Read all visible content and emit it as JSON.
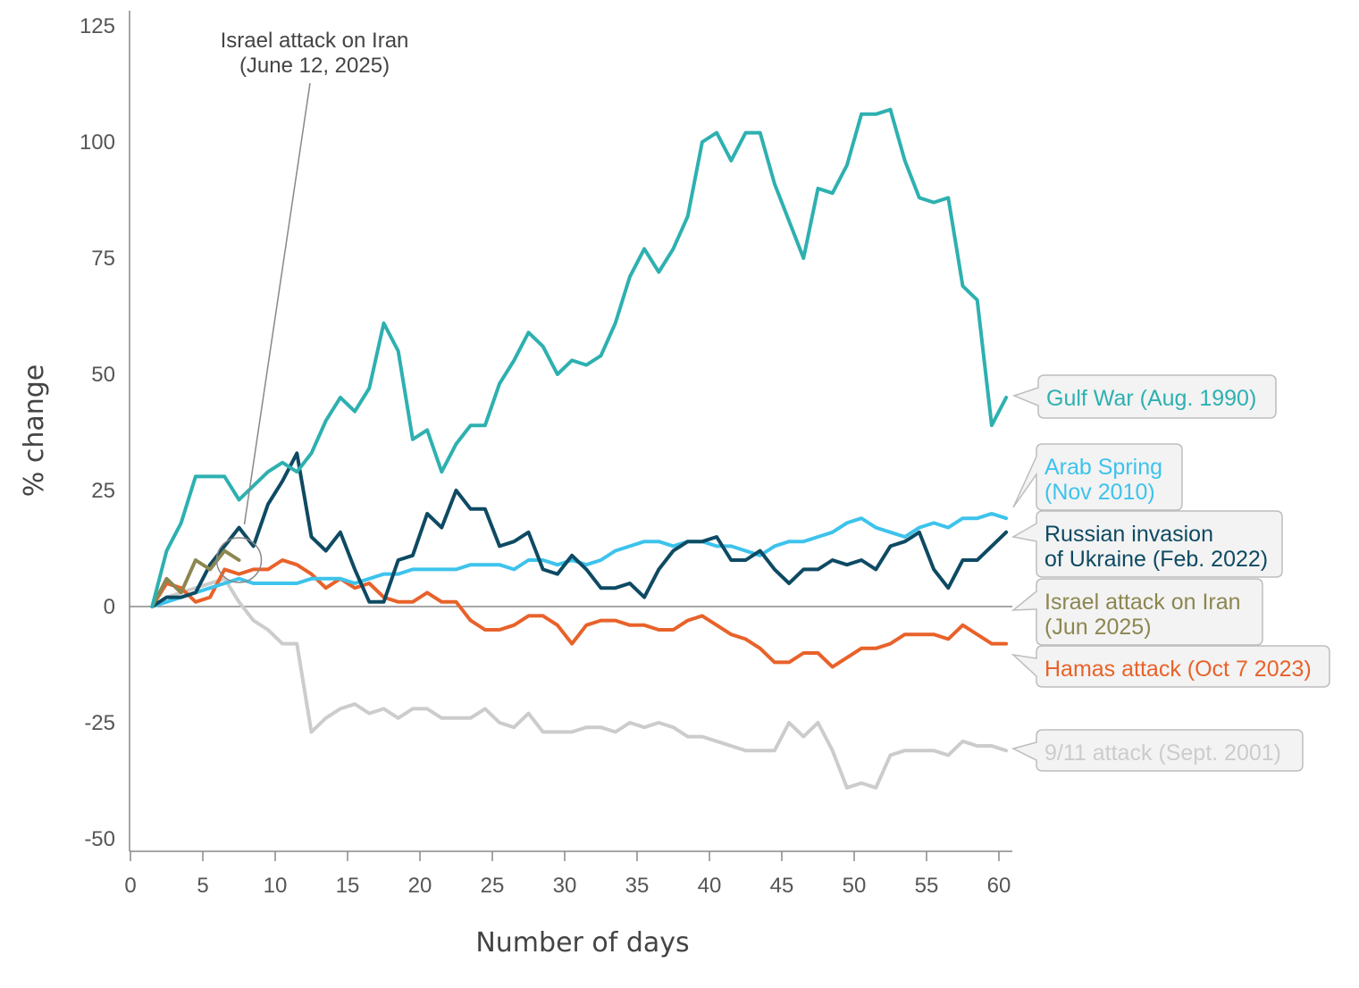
{
  "chart_data": {
    "type": "line",
    "title": "",
    "xlabel": "Number of days",
    "ylabel": "% change",
    "xlim": [
      0,
      61
    ],
    "ylim": [
      -52,
      128
    ],
    "xticks": [
      0,
      5,
      10,
      15,
      20,
      25,
      30,
      35,
      40,
      45,
      50,
      55,
      60
    ],
    "yticks": [
      125,
      100,
      75,
      50,
      25,
      0,
      -25,
      -50
    ],
    "zero_line": true,
    "grid": false,
    "legend": "callouts-right",
    "annotation": {
      "line1": "Israel attack on Iran",
      "line2": "(June 12, 2025)",
      "target_x": 7.5,
      "target_y": 10
    },
    "series": [
      {
        "name": "9/11 attack (Sept. 2001)",
        "label_lines": [
          "9/11 attack (Sept. 2001)"
        ],
        "color": "#cccccc",
        "x": [
          1.5,
          2.5,
          3.5,
          4.5,
          5.5,
          6.5,
          7.5,
          8.5,
          9.5,
          10.5,
          11.5,
          12.5,
          13.5,
          14.5,
          15.5,
          16.5,
          17.5,
          18.5,
          19.5,
          20.5,
          21.5,
          22.5,
          23.5,
          24.5,
          25.5,
          26.5,
          27.5,
          28.5,
          29.5,
          30.5,
          31.5,
          32.5,
          33.5,
          34.5,
          35.5,
          36.5,
          37.5,
          38.5,
          39.5,
          40.5,
          41.5,
          42.5,
          43.5,
          44.5,
          45.5,
          46.5,
          47.5,
          48.5,
          49.5,
          50.5,
          51.5,
          52.5,
          53.5,
          54.5,
          55.5,
          56.5,
          57.5,
          58.5,
          59.5,
          60.5
        ],
        "y": [
          0,
          2,
          3,
          4,
          5,
          6,
          1,
          -3,
          -5,
          -8,
          -8,
          -27,
          -24,
          -22,
          -21,
          -23,
          -22,
          -24,
          -22,
          -22,
          -24,
          -24,
          -24,
          -22,
          -25,
          -26,
          -23,
          -27,
          -27,
          -27,
          -26,
          -26,
          -27,
          -25,
          -26,
          -25,
          -26,
          -28,
          -28,
          -29,
          -30,
          -31,
          -31,
          -31,
          -25,
          -28,
          -25,
          -31,
          -39,
          -38,
          -39,
          -32,
          -31,
          -31,
          -31,
          -32,
          -29,
          -30,
          -30,
          -31
        ]
      },
      {
        "name": "Hamas attack (Oct 7 2023)",
        "label_lines": [
          "Hamas attack (Oct 7 2023)"
        ],
        "color": "#e8622a",
        "x": [
          1.5,
          2.5,
          3.5,
          4.5,
          5.5,
          6.5,
          7.5,
          8.5,
          9.5,
          10.5,
          11.5,
          12.5,
          13.5,
          14.5,
          15.5,
          16.5,
          17.5,
          18.5,
          19.5,
          20.5,
          21.5,
          22.5,
          23.5,
          24.5,
          25.5,
          26.5,
          27.5,
          28.5,
          29.5,
          30.5,
          31.5,
          32.5,
          33.5,
          34.5,
          35.5,
          36.5,
          37.5,
          38.5,
          39.5,
          40.5,
          41.5,
          42.5,
          43.5,
          44.5,
          45.5,
          46.5,
          47.5,
          48.5,
          49.5,
          50.5,
          51.5,
          52.5,
          53.5,
          54.5,
          55.5,
          56.5,
          57.5,
          58.5,
          59.5,
          60.5
        ],
        "y": [
          0,
          5,
          4,
          1,
          2,
          8,
          7,
          8,
          8,
          10,
          9,
          7,
          4,
          6,
          4,
          5,
          2,
          1,
          1,
          3,
          1,
          1,
          -3,
          -5,
          -5,
          -4,
          -2,
          -2,
          -4,
          -8,
          -4,
          -3,
          -3,
          -4,
          -4,
          -5,
          -5,
          -3,
          -2,
          -4,
          -6,
          -7,
          -9,
          -12,
          -12,
          -10,
          -10,
          -13,
          -11,
          -9,
          -9,
          -8,
          -6,
          -6,
          -6,
          -7,
          -4,
          -6,
          -8,
          -8
        ]
      },
      {
        "name": "Arab Spring (Nov 2010)",
        "label_lines": [
          "Arab Spring",
          "(Nov 2010)"
        ],
        "color": "#3dc3ec",
        "x": [
          1.5,
          2.5,
          3.5,
          4.5,
          5.5,
          6.5,
          7.5,
          8.5,
          9.5,
          10.5,
          11.5,
          12.5,
          13.5,
          14.5,
          15.5,
          16.5,
          17.5,
          18.5,
          19.5,
          20.5,
          21.5,
          22.5,
          23.5,
          24.5,
          25.5,
          26.5,
          27.5,
          28.5,
          29.5,
          30.5,
          31.5,
          32.5,
          33.5,
          34.5,
          35.5,
          36.5,
          37.5,
          38.5,
          39.5,
          40.5,
          41.5,
          42.5,
          43.5,
          44.5,
          45.5,
          46.5,
          47.5,
          48.5,
          49.5,
          50.5,
          51.5,
          52.5,
          53.5,
          54.5,
          55.5,
          56.5,
          57.5,
          58.5,
          59.5,
          60.5
        ],
        "y": [
          0,
          1,
          2,
          3,
          4,
          5,
          6,
          5,
          5,
          5,
          5,
          6,
          6,
          6,
          5,
          6,
          7,
          7,
          8,
          8,
          8,
          8,
          9,
          9,
          9,
          8,
          10,
          10,
          9,
          10,
          9,
          10,
          12,
          13,
          14,
          14,
          13,
          14,
          14,
          13,
          13,
          12,
          11,
          13,
          14,
          14,
          15,
          16,
          18,
          19,
          17,
          16,
          15,
          17,
          18,
          17,
          19,
          19,
          20,
          19
        ]
      },
      {
        "name": "Russian invasion of Ukraine (Feb. 2022)",
        "label_lines": [
          "Russian invasion",
          "of Ukraine (Feb. 2022)"
        ],
        "color": "#0e4a63",
        "x": [
          1.5,
          2.5,
          3.5,
          4.5,
          5.5,
          6.5,
          7.5,
          8.5,
          9.5,
          10.5,
          11.5,
          12.5,
          13.5,
          14.5,
          15.5,
          16.5,
          17.5,
          18.5,
          19.5,
          20.5,
          21.5,
          22.5,
          23.5,
          24.5,
          25.5,
          26.5,
          27.5,
          28.5,
          29.5,
          30.5,
          31.5,
          32.5,
          33.5,
          34.5,
          35.5,
          36.5,
          37.5,
          38.5,
          39.5,
          40.5,
          41.5,
          42.5,
          43.5,
          44.5,
          45.5,
          46.5,
          47.5,
          48.5,
          49.5,
          50.5,
          51.5,
          52.5,
          53.5,
          54.5,
          55.5,
          56.5,
          57.5,
          58.5,
          59.5,
          60.5
        ],
        "y": [
          0,
          2,
          2,
          3,
          9,
          13,
          17,
          13,
          22,
          27,
          33,
          15,
          12,
          16,
          8,
          1,
          1,
          10,
          11,
          20,
          17,
          25,
          21,
          21,
          13,
          14,
          16,
          8,
          7,
          11,
          8,
          4,
          4,
          5,
          2,
          8,
          12,
          14,
          14,
          15,
          10,
          10,
          12,
          8,
          5,
          8,
          8,
          10,
          9,
          10,
          8,
          13,
          14,
          16,
          8,
          4,
          10,
          10,
          13,
          16
        ]
      },
      {
        "name": "Israel attack on Iran (Jun 2025)",
        "label_lines": [
          "Israel attack on Iran",
          "(Jun 2025)"
        ],
        "color": "#8c8650",
        "x": [
          1.5,
          2.5,
          3.5,
          4.5,
          5.5,
          6.5,
          7.5
        ],
        "y": [
          0,
          6,
          3,
          10,
          8,
          12,
          10
        ]
      },
      {
        "name": "Gulf War (Aug. 1990)",
        "label_lines": [
          "Gulf War (Aug. 1990)"
        ],
        "color": "#2eb0b0",
        "x": [
          1.5,
          2.5,
          3.5,
          4.5,
          5.5,
          6.5,
          7.5,
          8.5,
          9.5,
          10.5,
          11.5,
          12.5,
          13.5,
          14.5,
          15.5,
          16.5,
          17.5,
          18.5,
          19.5,
          20.5,
          21.5,
          22.5,
          23.5,
          24.5,
          25.5,
          26.5,
          27.5,
          28.5,
          29.5,
          30.5,
          31.5,
          32.5,
          33.5,
          34.5,
          35.5,
          36.5,
          37.5,
          38.5,
          39.5,
          40.5,
          41.5,
          42.5,
          43.5,
          44.5,
          45.5,
          46.5,
          47.5,
          48.5,
          49.5,
          50.5,
          51.5,
          52.5,
          53.5,
          54.5,
          55.5,
          56.5,
          57.5,
          58.5,
          59.5,
          60.5
        ],
        "y": [
          0,
          12,
          18,
          28,
          28,
          28,
          23,
          26,
          29,
          31,
          29,
          33,
          40,
          45,
          42,
          47,
          61,
          55,
          36,
          38,
          29,
          35,
          39,
          39,
          48,
          53,
          59,
          56,
          50,
          53,
          52,
          54,
          61,
          71,
          77,
          72,
          77,
          84,
          100,
          102,
          96,
          102,
          102,
          91,
          83,
          75,
          90,
          89,
          95,
          106,
          106,
          107,
          96,
          88,
          87,
          88,
          69,
          66,
          39,
          45
        ]
      }
    ]
  }
}
